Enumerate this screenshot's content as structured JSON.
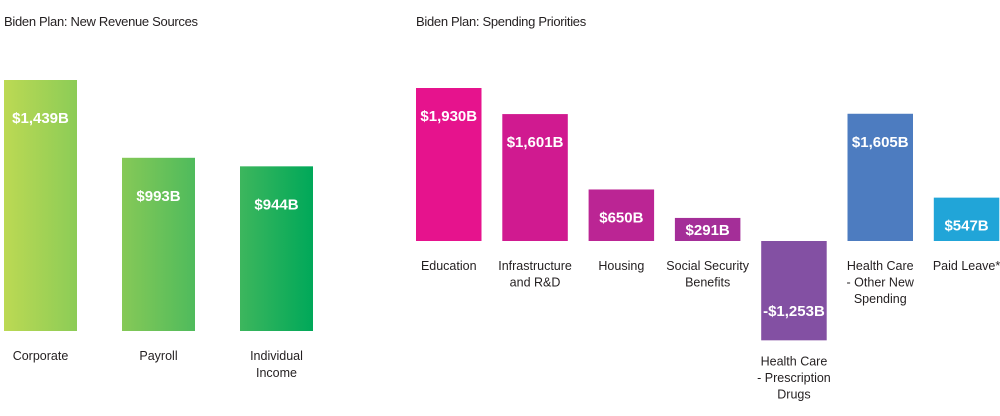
{
  "chart_data": [
    {
      "type": "bar",
      "title": "Biden Plan: New Revenue Sources",
      "categories": [
        "Corporate",
        "Payroll",
        "Individual Income"
      ],
      "category_lines": [
        [
          "Corporate"
        ],
        [
          "Payroll"
        ],
        [
          "Individual",
          "Income"
        ]
      ],
      "values": [
        1439,
        993,
        944
      ],
      "value_labels": [
        "$1,439B",
        "$993B",
        "$944B"
      ],
      "colors": [
        [
          "#bcd954",
          "#8ccc56"
        ],
        [
          "#86c957",
          "#4fbb5c"
        ],
        [
          "#3db65d",
          "#00a859"
        ]
      ],
      "unit": "B",
      "ylim": [
        0,
        1439
      ],
      "legend": "none",
      "grid": false
    },
    {
      "type": "bar",
      "title": "Biden Plan: Spending Priorities",
      "categories": [
        "Education",
        "Infrastructure and R&D",
        "Housing",
        "Social Security Benefits",
        "Health Care - Prescription Drugs",
        "Health Care - Other New Spending",
        "Paid Leave*"
      ],
      "category_lines": [
        [
          "Education"
        ],
        [
          "Infrastructure",
          "and R&D"
        ],
        [
          "Housing"
        ],
        [
          "Social Security",
          "Benefits"
        ],
        [
          "Health Care",
          "- Prescription",
          "Drugs"
        ],
        [
          "Health Care",
          "- Other New",
          "Spending"
        ],
        [
          "Paid Leave*"
        ]
      ],
      "values": [
        1930,
        1601,
        650,
        291,
        -1253,
        1605,
        547
      ],
      "value_labels": [
        "$1,930B",
        "$1,601B",
        "$650B",
        "$291B",
        "-$1,253B",
        "$1,605B",
        "$547B"
      ],
      "colors": [
        "#e6138d",
        "#d01a90",
        "#bb2594",
        "#a42e98",
        "#8350a3",
        "#4d7cc0",
        "#21a5d8"
      ],
      "unit": "B",
      "ylim": [
        -1253,
        1930
      ],
      "legend": "none",
      "grid": false
    }
  ]
}
